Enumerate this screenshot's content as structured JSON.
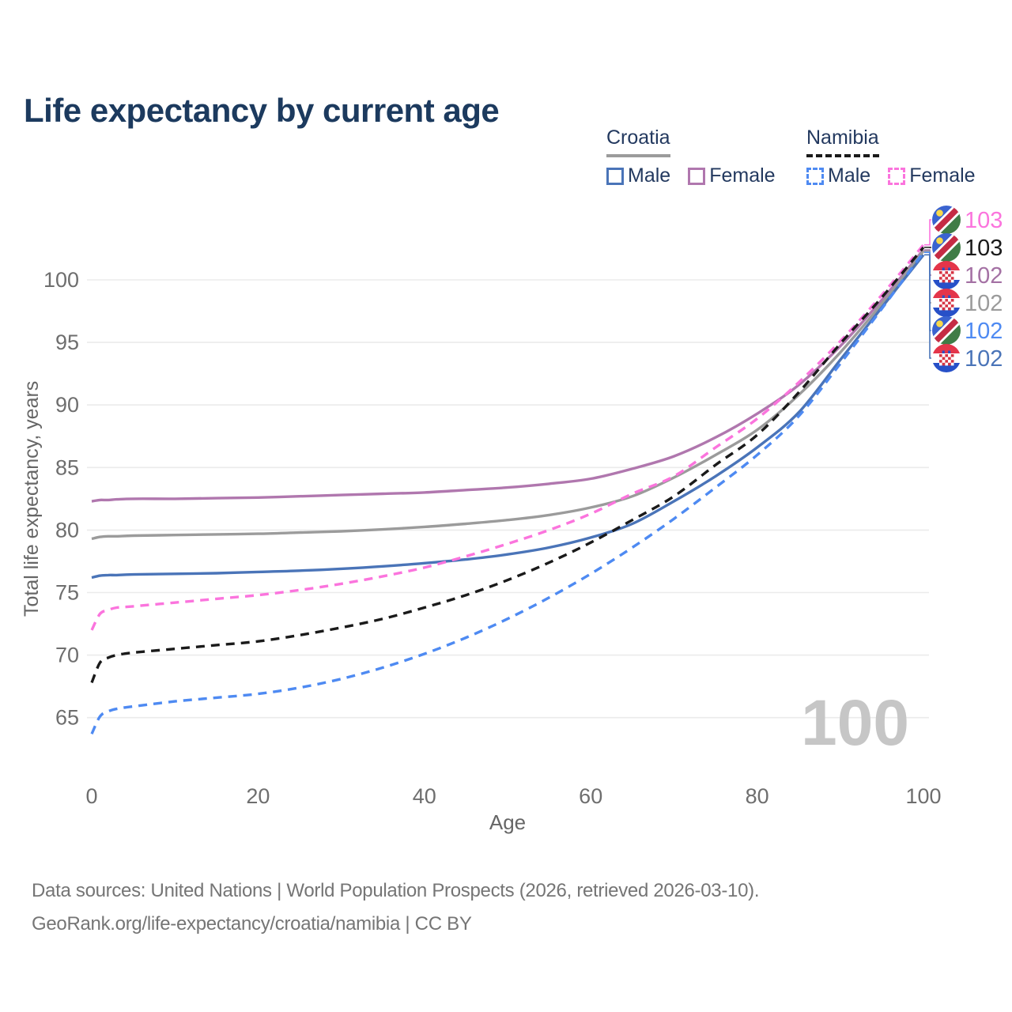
{
  "title": "Life expectancy by current age",
  "watermark": "100",
  "legend": {
    "groups": [
      {
        "name": "Croatia",
        "line_style": "solid",
        "line_color": "#9b9b9b",
        "items": [
          {
            "label": "Male",
            "color": "#4a74b8",
            "style": "solid"
          },
          {
            "label": "Female",
            "color": "#b077ae",
            "style": "solid"
          }
        ]
      },
      {
        "name": "Namibia",
        "line_style": "dashed",
        "line_color": "#1a1a1a",
        "items": [
          {
            "label": "Male",
            "color": "#4e8af2",
            "style": "dashed"
          },
          {
            "label": "Female",
            "color": "#fb74dd",
            "style": "dashed"
          }
        ]
      }
    ]
  },
  "footer": {
    "line1": "Data sources: United Nations | World Population Prospects (2026, retrieved 2026-03-10).",
    "line2": "GeoRank.org/life-expectancy/croatia/namibia | CC BY"
  },
  "chart_data": {
    "type": "line",
    "title": "Life expectancy by current age",
    "xlabel": "Age",
    "ylabel": "Total life expectancy, years",
    "xlim": [
      0,
      100
    ],
    "ylim": [
      63,
      104
    ],
    "x_ticks": [
      0,
      20,
      40,
      60,
      80,
      100
    ],
    "y_ticks": [
      65,
      70,
      75,
      80,
      85,
      90,
      95,
      100
    ],
    "grid": "horizontal-only",
    "legend_position": "top-right",
    "watermark_age": "100",
    "x": [
      0,
      1,
      2,
      3,
      5,
      10,
      15,
      20,
      25,
      30,
      35,
      40,
      45,
      50,
      55,
      60,
      65,
      70,
      75,
      80,
      85,
      90,
      95,
      100
    ],
    "series": [
      {
        "name": "Croatia Female",
        "country": "Croatia",
        "sex": "Female",
        "color": "#b077ae",
        "dash": "solid",
        "values": [
          82.3,
          82.4,
          82.4,
          82.45,
          82.5,
          82.5,
          82.55,
          82.6,
          82.7,
          82.8,
          82.9,
          83.0,
          83.2,
          83.4,
          83.7,
          84.1,
          84.9,
          85.9,
          87.4,
          89.3,
          91.6,
          94.7,
          98.4,
          102.4
        ]
      },
      {
        "name": "Croatia Total",
        "country": "Croatia",
        "sex": "Both",
        "color": "#9b9b9b",
        "dash": "solid",
        "values": [
          79.3,
          79.45,
          79.5,
          79.5,
          79.55,
          79.6,
          79.65,
          79.7,
          79.8,
          79.9,
          80.05,
          80.25,
          80.5,
          80.8,
          81.2,
          81.8,
          82.7,
          84.2,
          86.0,
          88.0,
          90.8,
          94.2,
          98.1,
          102.3
        ]
      },
      {
        "name": "Croatia Male",
        "country": "Croatia",
        "sex": "Male",
        "color": "#4a74b8",
        "dash": "solid",
        "values": [
          76.2,
          76.35,
          76.4,
          76.4,
          76.45,
          76.5,
          76.55,
          76.65,
          76.75,
          76.9,
          77.1,
          77.35,
          77.65,
          78.05,
          78.6,
          79.4,
          80.5,
          82.3,
          84.3,
          86.6,
          89.4,
          93.6,
          97.8,
          102.0
        ]
      },
      {
        "name": "Namibia Female",
        "country": "Namibia",
        "sex": "Female",
        "color": "#fb74dd",
        "dash": "dashed",
        "values": [
          72.0,
          73.3,
          73.6,
          73.8,
          73.9,
          74.2,
          74.5,
          74.8,
          75.2,
          75.7,
          76.3,
          77.0,
          77.9,
          78.9,
          80.0,
          81.3,
          82.9,
          84.3,
          86.6,
          88.9,
          91.8,
          95.1,
          98.8,
          102.8
        ]
      },
      {
        "name": "Namibia Total",
        "country": "Namibia",
        "sex": "Both",
        "color": "#1a1a1a",
        "dash": "dashed",
        "values": [
          67.8,
          69.4,
          69.8,
          70.0,
          70.2,
          70.5,
          70.8,
          71.1,
          71.6,
          72.2,
          72.9,
          73.8,
          74.8,
          76.0,
          77.4,
          79.0,
          80.8,
          82.7,
          85.2,
          87.6,
          91.0,
          94.9,
          98.6,
          102.6
        ]
      },
      {
        "name": "Namibia Male",
        "country": "Namibia",
        "sex": "Male",
        "color": "#4e8af2",
        "dash": "dashed",
        "values": [
          63.7,
          65.1,
          65.5,
          65.7,
          65.9,
          66.3,
          66.6,
          66.9,
          67.4,
          68.1,
          69.0,
          70.1,
          71.4,
          72.9,
          74.6,
          76.5,
          78.6,
          80.9,
          83.4,
          86.0,
          89.1,
          93.3,
          97.7,
          102.2
        ]
      }
    ],
    "end_labels": [
      {
        "series": "Namibia Female",
        "flag": "namibia",
        "label": "103",
        "end_value": 102.8,
        "color": "#fb74dd"
      },
      {
        "series": "Namibia Total",
        "flag": "namibia",
        "label": "103",
        "end_value": 102.6,
        "color": "#1a1a1a"
      },
      {
        "series": "Croatia Female",
        "flag": "croatia",
        "label": "102",
        "end_value": 102.4,
        "color": "#a471a4"
      },
      {
        "series": "Croatia Total",
        "flag": "croatia",
        "label": "102",
        "end_value": 102.3,
        "color": "#9b9b9b"
      },
      {
        "series": "Namibia Male",
        "flag": "namibia",
        "label": "102",
        "end_value": 102.2,
        "color": "#4e8af2"
      },
      {
        "series": "Croatia Male",
        "flag": "croatia",
        "label": "102",
        "end_value": 102.0,
        "color": "#4a74b8"
      }
    ]
  }
}
